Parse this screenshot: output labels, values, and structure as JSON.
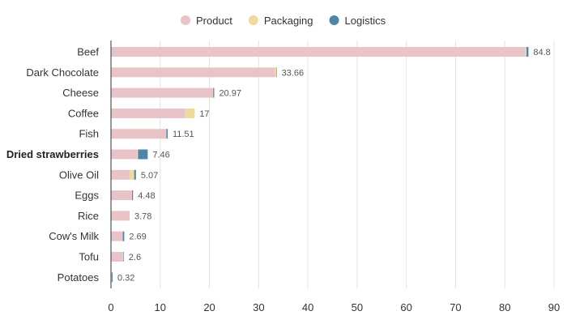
{
  "chart_data": {
    "type": "bar",
    "orientation": "horizontal",
    "stacked": true,
    "categories": [
      "Beef",
      "Dark Chocolate",
      "Cheese",
      "Coffee",
      "Fish",
      "Dried strawberries",
      "Olive Oil",
      "Eggs",
      "Rice",
      "Cow's Milk",
      "Tofu",
      "Potatoes"
    ],
    "highlighted_category": "Dried strawberries",
    "series": [
      {
        "name": "Product",
        "color": "#e8c4c8",
        "values": [
          84.2,
          33.26,
          20.7,
          15.1,
          11.21,
          5.3,
          3.82,
          4.23,
          3.78,
          2.29,
          2.41,
          0.12
        ]
      },
      {
        "name": "Packaging",
        "color": "#efd99b",
        "values": [
          0.2,
          0.3,
          0.07,
          1.9,
          0.05,
          0.2,
          0.9,
          0.05,
          0,
          0.1,
          0.09,
          0.05
        ]
      },
      {
        "name": "Logistics",
        "color": "#4d86a8",
        "values": [
          0.4,
          0.1,
          0.2,
          0,
          0.25,
          1.96,
          0.35,
          0.2,
          0,
          0.3,
          0.1,
          0.15
        ]
      }
    ],
    "totals": [
      "84.8",
      "33.66",
      "20.97",
      "17",
      "11.51",
      "7.46",
      "5.07",
      "4.48",
      "3.78",
      "2.69",
      "2.6",
      "0.32"
    ],
    "xlim": [
      0,
      90
    ],
    "xticks": [
      "0",
      "10",
      "20",
      "30",
      "40",
      "50",
      "60",
      "70",
      "80",
      "90"
    ],
    "grid": true,
    "legend_position": "top-center",
    "title": "",
    "xlabel": "",
    "ylabel": ""
  }
}
